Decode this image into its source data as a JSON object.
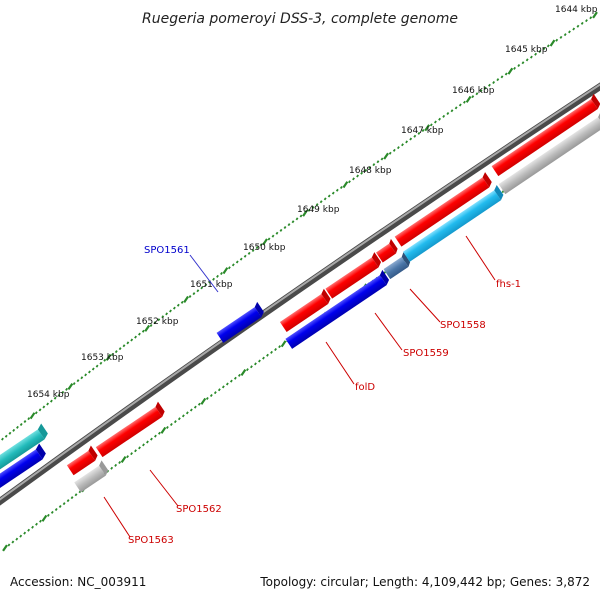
{
  "title": "Ruegeria pomeroyi DSS-3, complete genome",
  "accession_label": "Accession: NC_003911",
  "summary_label": "Topology: circular; Length: 4,109,442 bp; Genes: 3,872",
  "kbp_labels": [
    "1644 kbp",
    "1645 kbp",
    "1646 kbp",
    "1647 kbp",
    "1648 kbp",
    "1649 kbp",
    "1650 kbp",
    "1651 kbp",
    "1652 kbp",
    "1653 kbp",
    "1654 kbp"
  ],
  "gene_labels": [
    {
      "id": "spo1561",
      "text": "SPO1561",
      "color": "#0000cc"
    },
    {
      "id": "fhs1",
      "text": "fhs-1",
      "color": "#cc0000"
    },
    {
      "id": "spo1558",
      "text": "SPO1558",
      "color": "#cc0000"
    },
    {
      "id": "spo1559",
      "text": "SPO1559",
      "color": "#cc0000"
    },
    {
      "id": "fold",
      "text": "folD",
      "color": "#cc0000"
    },
    {
      "id": "spo1562",
      "text": "SPO1562",
      "color": "#cc0000"
    },
    {
      "id": "spo1563",
      "text": "SPO1563",
      "color": "#cc0000"
    }
  ],
  "colors": {
    "backbone": "#777777",
    "ticks": "#2a8a2a",
    "forward_gene": "#ff0000",
    "reverse_gene": "#0000dd",
    "rna_gene": "#22bbee",
    "pseudo_gene": "#bbbbbb",
    "teal_gene": "#22bbbb"
  }
}
